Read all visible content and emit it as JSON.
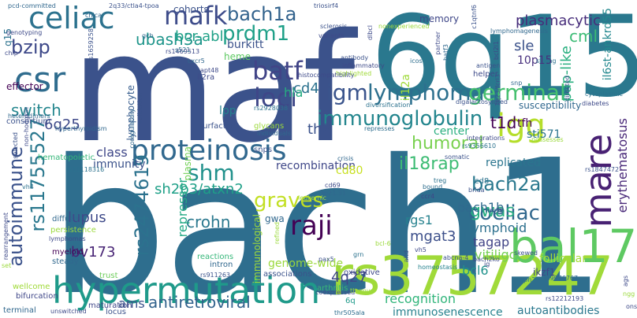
{
  "words": [
    {
      "text": "bach1",
      "color": "#2e6e8e"
    },
    {
      "text": "maf",
      "color": "#3b528b"
    },
    {
      "text": "6q15",
      "color": "#2a788e"
    },
    {
      "text": "rs3757247",
      "color": "#a0da39"
    },
    {
      "text": "hypermutation",
      "color": "#1f9a8a"
    },
    {
      "text": "bal17",
      "color": "#5ec962"
    },
    {
      "text": "mare",
      "color": "#482173"
    },
    {
      "text": "celiac",
      "color": "#2c728e"
    },
    {
      "text": "csr",
      "color": "#2f6c8e"
    },
    {
      "text": "proteinosis",
      "color": "#31688e"
    },
    {
      "text": "mafk",
      "color": "#3e4c8a"
    },
    {
      "text": "bach1a",
      "color": "#33638d"
    },
    {
      "text": "prdm1",
      "color": "#1fa088"
    },
    {
      "text": "lymphoma",
      "color": "#2d708e"
    },
    {
      "text": "igm",
      "color": "#3a548c"
    },
    {
      "text": "loci",
      "color": "#3f4788"
    },
    {
      "text": "batf",
      "color": "#414487"
    },
    {
      "text": "immunoglobulin",
      "color": "#24868e"
    },
    {
      "text": "igg",
      "color": "#b5de2b"
    },
    {
      "text": "shm",
      "color": "#21918c"
    },
    {
      "text": "raji",
      "color": "#440154"
    },
    {
      "text": "graves",
      "color": "#c2df23"
    },
    {
      "text": "coeliac",
      "color": "#31688e"
    },
    {
      "text": "autoimmune",
      "color": "#3b528b"
    },
    {
      "text": "rs11755527",
      "color": "#2a788e"
    },
    {
      "text": "rs2474619",
      "color": "#2c728e"
    },
    {
      "text": "germinal",
      "color": "#46c06f"
    },
    {
      "text": "bach2a",
      "color": "#2a788e"
    },
    {
      "text": "humoral",
      "color": "#7ad151"
    },
    {
      "text": "il18rap",
      "color": "#3dbc74"
    },
    {
      "text": "erythematosus",
      "color": "#482878"
    },
    {
      "text": "gwas",
      "color": "#27ad81"
    },
    {
      "text": "autoantibodies",
      "color": "#2a788e"
    },
    {
      "text": "antiretroviral",
      "color": "#33638d"
    },
    {
      "text": "bzip",
      "color": "#3e4989"
    },
    {
      "text": "ubash3a",
      "color": "#1f958b"
    },
    {
      "text": "bcr-abl",
      "color": "#1fa187"
    },
    {
      "text": "plasmacytic",
      "color": "#472d7b"
    },
    {
      "text": "cml",
      "color": "#3bbb75"
    },
    {
      "text": "pap-like",
      "color": "#29af7f"
    },
    {
      "text": "il6st-ankrd55",
      "color": "#23888e"
    },
    {
      "text": "crohn",
      "color": "#2a788e"
    },
    {
      "text": "lupus",
      "color": "#3e4a89"
    },
    {
      "text": "bv173",
      "color": "#482475"
    },
    {
      "text": "sh2b3/atxn2",
      "color": "#1fa088"
    },
    {
      "text": "t1d",
      "color": "#440154"
    },
    {
      "text": "switch",
      "color": "#24868e"
    },
    {
      "text": "6q25",
      "color": "#3e4989"
    },
    {
      "text": "sle",
      "color": "#3b528b"
    },
    {
      "text": "10p15",
      "color": "#472f7d"
    },
    {
      "text": "bach1b",
      "color": "#306a8e"
    },
    {
      "text": "tagap",
      "color": "#414487"
    },
    {
      "text": "vitiligo",
      "color": "#75d054"
    },
    {
      "text": "lymphoid",
      "color": "#2d708e"
    },
    {
      "text": "mgat3",
      "color": "#3c4f8a"
    },
    {
      "text": "bcl6",
      "color": "#20928c"
    },
    {
      "text": "4q27",
      "color": "#3f4889"
    },
    {
      "text": "immunosenescence",
      "color": "#26828e"
    },
    {
      "text": "recognition",
      "color": "#31b57b"
    },
    {
      "text": "rgs1",
      "color": "#26828e"
    },
    {
      "text": "repressor",
      "color": "#22a884"
    },
    {
      "text": "replicated",
      "color": "#2b758e"
    },
    {
      "text": "sti571",
      "color": "#2b748e"
    },
    {
      "text": "tfh",
      "color": "#440154"
    },
    {
      "text": "th2",
      "color": "#3b528b"
    },
    {
      "text": "cd4",
      "color": "#2c728e"
    },
    {
      "text": "hla",
      "color": "#26ad81"
    },
    {
      "text": "burkitt",
      "color": "#3b528b"
    },
    {
      "text": "heme",
      "color": "#5ec962"
    },
    {
      "text": "cohorts",
      "color": "#3b528b"
    },
    {
      "text": "memory",
      "color": "#3f4788"
    },
    {
      "text": "susceptibility",
      "color": "#31688e"
    },
    {
      "text": "recombination",
      "color": "#3f4788"
    },
    {
      "text": "class",
      "color": "#3f4788"
    },
    {
      "text": "immunity",
      "color": "#3b528b"
    },
    {
      "text": "cd80",
      "color": "#c8e020"
    },
    {
      "text": "genome-wide",
      "color": "#9bd93c"
    },
    {
      "text": "ams",
      "color": "#3b528b"
    },
    {
      "text": "lymphocyte",
      "color": "#365c8d"
    },
    {
      "text": "plasma",
      "color": "#73d056"
    },
    {
      "text": "immunological",
      "color": "#a0da39"
    },
    {
      "text": "il12a",
      "color": "#9fda3a"
    },
    {
      "text": "lpp",
      "color": "#26828e"
    },
    {
      "text": "center",
      "color": "#29af7f"
    },
    {
      "text": "gwa",
      "color": "#31688e"
    },
    {
      "text": "ikzf1",
      "color": "#3f4788"
    },
    {
      "text": "follicular",
      "color": "#a5db36"
    },
    {
      "text": "q15",
      "color": "#2c728e"
    },
    {
      "text": "effector",
      "color": "#440154"
    },
    {
      "text": "consortium",
      "color": "#3b528b"
    },
    {
      "text": "hematopoietic",
      "color": "#35b779"
    },
    {
      "text": "diffuse",
      "color": "#31688e"
    },
    {
      "text": "persistence",
      "color": "#9bd93c"
    },
    {
      "text": "myeloid",
      "color": "#440154"
    },
    {
      "text": "steady",
      "color": "#31688e"
    },
    {
      "text": "lymphomas",
      "color": "#3e4a89"
    },
    {
      "text": "wellcome",
      "color": "#a0da39"
    },
    {
      "text": "bifurcation",
      "color": "#3f4788"
    },
    {
      "text": "trust",
      "color": "#6ccd5a"
    },
    {
      "text": "associations",
      "color": "#3b528b"
    },
    {
      "text": "terminal",
      "color": "#31688e"
    },
    {
      "text": "unswitched",
      "color": "#3e4a89"
    },
    {
      "text": "maturation",
      "color": "#3f4788"
    },
    {
      "text": "locus",
      "color": "#3b528b"
    },
    {
      "text": "oxidative",
      "color": "#3e4989"
    },
    {
      "text": "coexpressed",
      "color": "#3e4989"
    },
    {
      "text": "arthritis",
      "color": "#37b878"
    },
    {
      "text": "6q",
      "color": "#1f9a8a"
    },
    {
      "text": "thr505ala",
      "color": "#2e6e8e"
    },
    {
      "text": "rs911263",
      "color": "#3b528b"
    },
    {
      "text": "intron",
      "color": "#31688e"
    },
    {
      "text": "reactions",
      "color": "#35b779"
    },
    {
      "text": "rs12212193",
      "color": "#3e4a89"
    },
    {
      "text": "rs9976767",
      "color": "#31688e"
    },
    {
      "text": "ptpn2",
      "color": "#2c728e"
    },
    {
      "text": "skewed",
      "color": "#3b528b"
    },
    {
      "text": "homeostasis",
      "color": "#26828e"
    },
    {
      "text": "bcl-6",
      "color": "#9bd93c"
    },
    {
      "text": "pax5",
      "color": "#3b528b"
    },
    {
      "text": "grn",
      "color": "#2c728e"
    },
    {
      "text": "aitd",
      "color": "#3b528b"
    },
    {
      "text": "cd69",
      "color": "#3e4a89"
    },
    {
      "text": "3p21.31",
      "color": "#31688e"
    },
    {
      "text": "leukemic",
      "color": "#a0da39"
    },
    {
      "text": "ccr4",
      "color": "#3f4788"
    },
    {
      "text": "treg",
      "color": "#2c728e"
    },
    {
      "text": "bound",
      "color": "#2e6e8e"
    },
    {
      "text": "cd8",
      "color": "#2c728e"
    },
    {
      "text": "brida",
      "color": "#3b528b"
    },
    {
      "text": "lrrc3b",
      "color": "#3b528b"
    },
    {
      "text": "crisis",
      "color": "#31688e"
    },
    {
      "text": "snps",
      "color": "#3b528b"
    },
    {
      "text": "individuals",
      "color": "#31688e"
    },
    {
      "text": "glycans",
      "color": "#9bd93c"
    },
    {
      "text": "surfactant",
      "color": "#3b528b"
    },
    {
      "text": "il2ra",
      "color": "#3e4a89"
    },
    {
      "text": "apt48",
      "color": "#3e4a89"
    },
    {
      "text": "cxcr5",
      "color": "#31688e"
    },
    {
      "text": "s521",
      "color": "#2c728e"
    },
    {
      "text": "gcb",
      "color": "#31688e"
    },
    {
      "text": "chica",
      "color": "#31688e"
    },
    {
      "text": "rs1469513",
      "color": "#3e4a89"
    },
    {
      "text": "rs1659258",
      "color": "#3b528b"
    },
    {
      "text": "rs2928038",
      "color": "#2c728e"
    },
    {
      "text": "rs11118316",
      "color": "#2c728e"
    },
    {
      "text": "rs9356610",
      "color": "#2c728e"
    },
    {
      "text": "rs1847472",
      "color": "#3b528b"
    },
    {
      "text": "integrations",
      "color": "#3e4a89"
    },
    {
      "text": "pcd-committed",
      "color": "#31688e"
    },
    {
      "text": "genotyping",
      "color": "#3e4a89"
    },
    {
      "text": "2q33/ctla4-tpoa",
      "color": "#3b528b"
    },
    {
      "text": "triosirf4",
      "color": "#3b528b"
    },
    {
      "text": "sclerosis",
      "color": "#3b528b"
    },
    {
      "text": "variants",
      "color": "#3e4a89"
    },
    {
      "text": "nonexperienced",
      "color": "#9bd93c"
    },
    {
      "text": "dlbcl",
      "color": "#3e4a89"
    },
    {
      "text": "partner",
      "color": "#3e4a89"
    },
    {
      "text": "lymphomagenesis",
      "color": "#31688e"
    },
    {
      "text": "bcl2l1",
      "color": "#3e4a89"
    },
    {
      "text": "c1qtnf6",
      "color": "#3b528b"
    },
    {
      "text": "batf3",
      "color": "#31688e"
    },
    {
      "text": "1q23/fcrl3",
      "color": "#3b528b"
    },
    {
      "text": "strong",
      "color": "#2c728e"
    },
    {
      "text": "icos",
      "color": "#2e6e8e"
    },
    {
      "text": "antigen",
      "color": "#3b528b"
    },
    {
      "text": "helper",
      "color": "#3e4a89"
    },
    {
      "text": "snp",
      "color": "#31688e"
    },
    {
      "text": "directed",
      "color": "#3b528b"
    },
    {
      "text": "diabetes",
      "color": "#3e4a89"
    },
    {
      "text": "cytoplasmic",
      "color": "#2c728e"
    },
    {
      "text": "antibody",
      "color": "#3b528b"
    },
    {
      "text": "inflammatory",
      "color": "#3e4a89"
    },
    {
      "text": "highlighted",
      "color": "#a0da39"
    },
    {
      "text": "histocompatibility",
      "color": "#3e4a89"
    },
    {
      "text": "diversification",
      "color": "#2c728e"
    },
    {
      "text": "represses",
      "color": "#2e6e8e"
    },
    {
      "text": "possesses",
      "color": "#9bd93c"
    },
    {
      "text": "digalactosylated",
      "color": "#3b528b"
    },
    {
      "text": "thymus",
      "color": "#9bd93c"
    },
    {
      "text": "somatic",
      "color": "#3b528b"
    },
    {
      "text": "coregulatory",
      "color": "#31688e"
    },
    {
      "text": "validation",
      "color": "#3b528b"
    },
    {
      "text": "heterodimers",
      "color": "#31688e"
    },
    {
      "text": "non-hodgkin",
      "color": "#3e4a89"
    },
    {
      "text": "selected",
      "color": "#3b528b"
    },
    {
      "text": "hyperthyroidism",
      "color": "#31688e"
    },
    {
      "text": "rearrangement",
      "color": "#3e4a89"
    },
    {
      "text": "refined",
      "color": "#9bd93c"
    },
    {
      "text": "bach2ko",
      "color": "#3e4a89"
    },
    {
      "text": "vh5",
      "color": "#3e4a89"
    },
    {
      "text": "abcna-4",
      "color": "#3b528b"
    },
    {
      "text": "ags",
      "color": "#3e4a89"
    },
    {
      "text": "ngg",
      "color": "#9bd93c"
    },
    {
      "text": "chip",
      "color": "#3e4a89"
    },
    {
      "text": "vh4",
      "color": "#2c728e"
    },
    {
      "text": "set",
      "color": "#9bd93c"
    },
    {
      "text": "ig",
      "color": "#3e4a89"
    },
    {
      "text": "onset",
      "color": "#3e4a89"
    }
  ]
}
